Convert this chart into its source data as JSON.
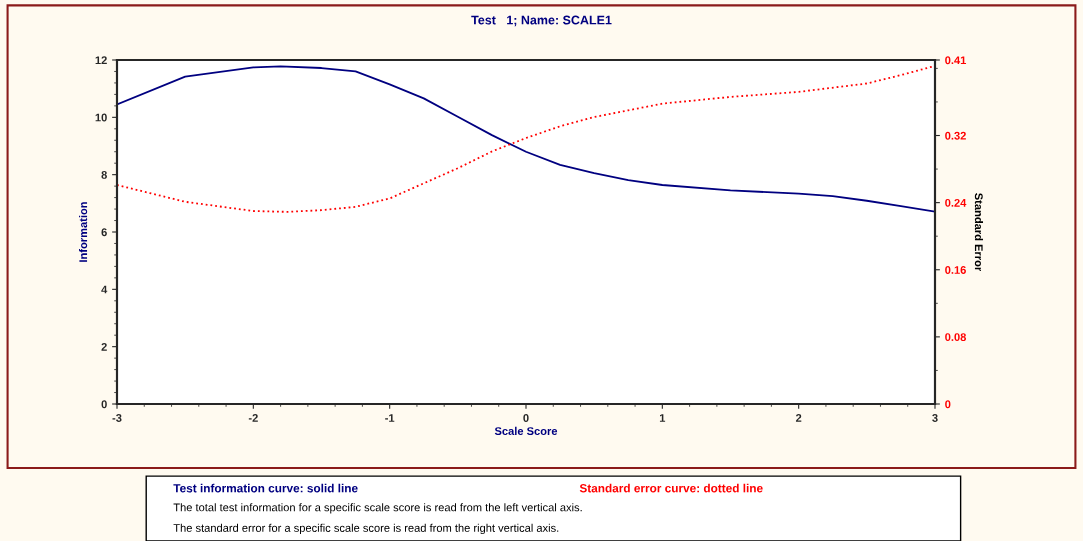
{
  "chart_data": {
    "type": "line",
    "title": "Test   1; Name: SCALE1",
    "xlabel": "Scale Score",
    "ylabel": "Information",
    "y2label": "Standard Error",
    "xlim": [
      -3,
      3
    ],
    "xticks": [
      -3,
      -2,
      -1,
      0,
      1,
      2,
      3
    ],
    "ylim": [
      0,
      12
    ],
    "yticks": [
      0,
      2,
      4,
      6,
      8,
      10,
      12
    ],
    "y2lim": [
      0,
      0.41
    ],
    "y2ticks": [
      0,
      0.08,
      0.16,
      0.24,
      0.32,
      0.41
    ],
    "grid": false,
    "legend": "bottom",
    "series": [
      {
        "name": "Test information curve: solid line",
        "color": "#000080",
        "line_style": "solid",
        "x": [
          -3,
          -2.5,
          -2,
          -1.8,
          -1.5,
          -1.25,
          -1,
          -0.75,
          -0.5,
          -0.25,
          0,
          0.25,
          0.5,
          0.75,
          1,
          1.5,
          2,
          2.25,
          2.5,
          2.75,
          3
        ],
        "values": [
          10.45,
          11.42,
          11.74,
          11.78,
          11.72,
          11.6,
          11.15,
          10.66,
          10.02,
          9.38,
          8.8,
          8.34,
          8.05,
          7.81,
          7.64,
          7.45,
          7.34,
          7.25,
          7.09,
          6.9,
          6.71
        ]
      },
      {
        "name": "Standard error curve: dotted line",
        "color": "#ff0000",
        "line_style": "dotted",
        "axis": "y2",
        "x": [
          -3,
          -2.5,
          -2,
          -1.75,
          -1.5,
          -1.25,
          -1,
          -0.75,
          -0.5,
          -0.25,
          0,
          0.25,
          0.5,
          0.75,
          1,
          1.5,
          2,
          2.5,
          2.75,
          3
        ],
        "values": [
          0.261,
          0.241,
          0.23,
          0.229,
          0.231,
          0.235,
          0.245,
          0.263,
          0.281,
          0.301,
          0.317,
          0.331,
          0.342,
          0.35,
          0.358,
          0.366,
          0.372,
          0.382,
          0.392,
          0.403
        ]
      }
    ],
    "annotations": [
      "The total test information for a specific scale score is read from the left vertical axis.",
      "The standard error for a specific scale score is read from the right vertical axis."
    ]
  }
}
